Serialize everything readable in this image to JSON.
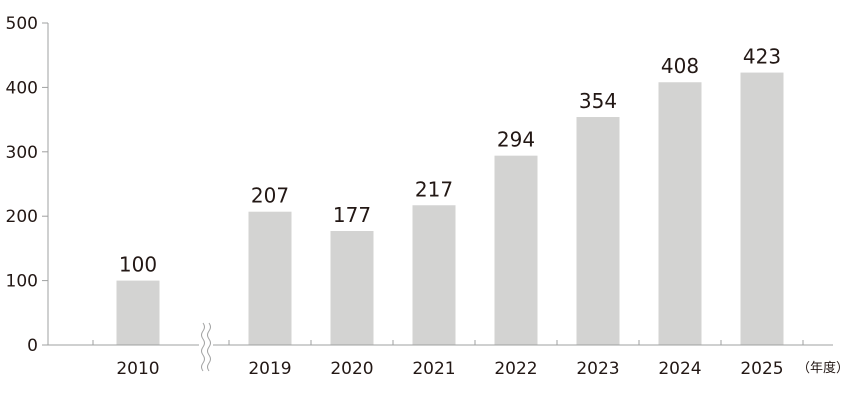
{
  "chart_data": {
    "type": "bar",
    "categories": [
      "2010",
      "2019",
      "2020",
      "2021",
      "2022",
      "2023",
      "2024",
      "2025"
    ],
    "values": [
      100,
      207,
      177,
      217,
      294,
      354,
      408,
      423
    ],
    "data_labels": [
      "100",
      "207",
      "177",
      "217",
      "294",
      "354",
      "408",
      "423"
    ],
    "yticks": [
      "0",
      "100",
      "200",
      "300",
      "400",
      "500"
    ],
    "ylim": [
      0,
      500
    ],
    "x_unit": "（年度）",
    "axis_break_after": "2010",
    "grid": false,
    "legend": "none",
    "colors": {
      "bar": "#d3d3d2",
      "axis": "#9fa0a0",
      "text": "#231815"
    }
  }
}
